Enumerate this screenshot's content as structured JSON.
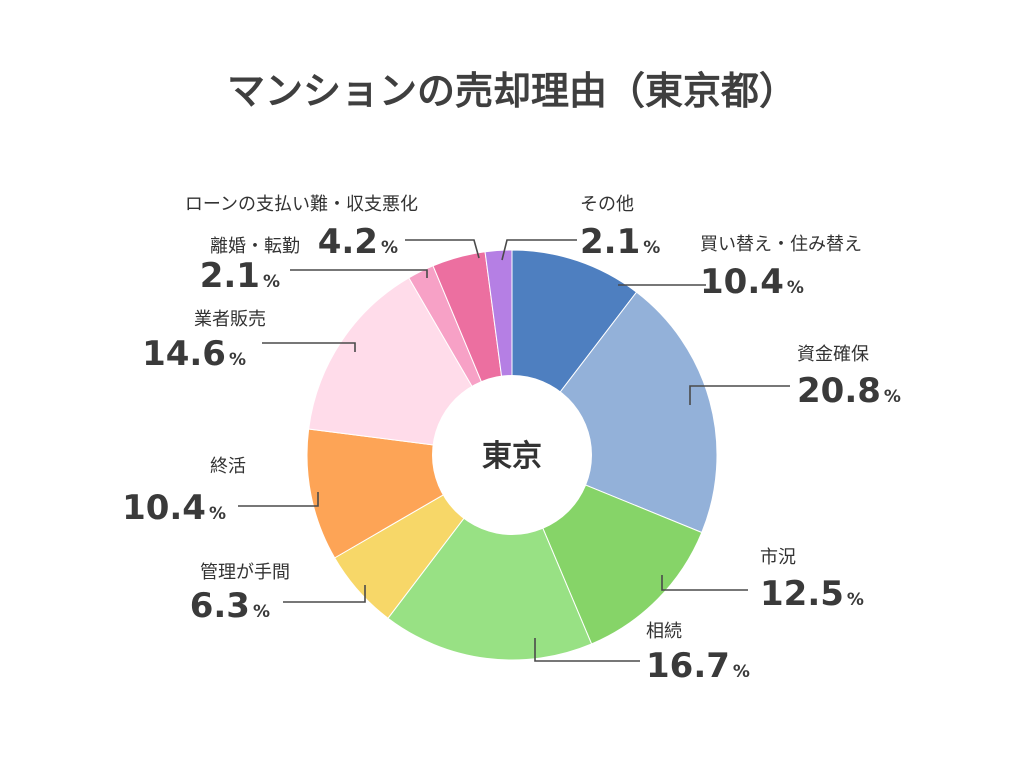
{
  "chart_data": {
    "type": "pie",
    "title": "マンションの売却理由（東京都）",
    "center_label": "東京",
    "unit": "%",
    "slices": [
      {
        "label": "買い替え・住み替え",
        "value": 10.4,
        "color": "#4e7fc0"
      },
      {
        "label": "資金確保",
        "value": 20.8,
        "color": "#93b1d9"
      },
      {
        "label": "市況",
        "value": 12.5,
        "color": "#86d468"
      },
      {
        "label": "相続",
        "value": 16.7,
        "color": "#98e184"
      },
      {
        "label": "管理が手間",
        "value": 6.3,
        "color": "#f7d768"
      },
      {
        "label": "終活",
        "value": 10.4,
        "color": "#fda456"
      },
      {
        "label": "業者販売",
        "value": 14.6,
        "color": "#ffdcea"
      },
      {
        "label": "離婚・転勤",
        "value": 2.1,
        "color": "#f7a1c6"
      },
      {
        "label": "ローンの支払い難・収支悪化",
        "value": 4.2,
        "color": "#ec6fa0"
      },
      {
        "label": "その他",
        "value": 2.1,
        "color": "#b57fe4"
      }
    ]
  }
}
